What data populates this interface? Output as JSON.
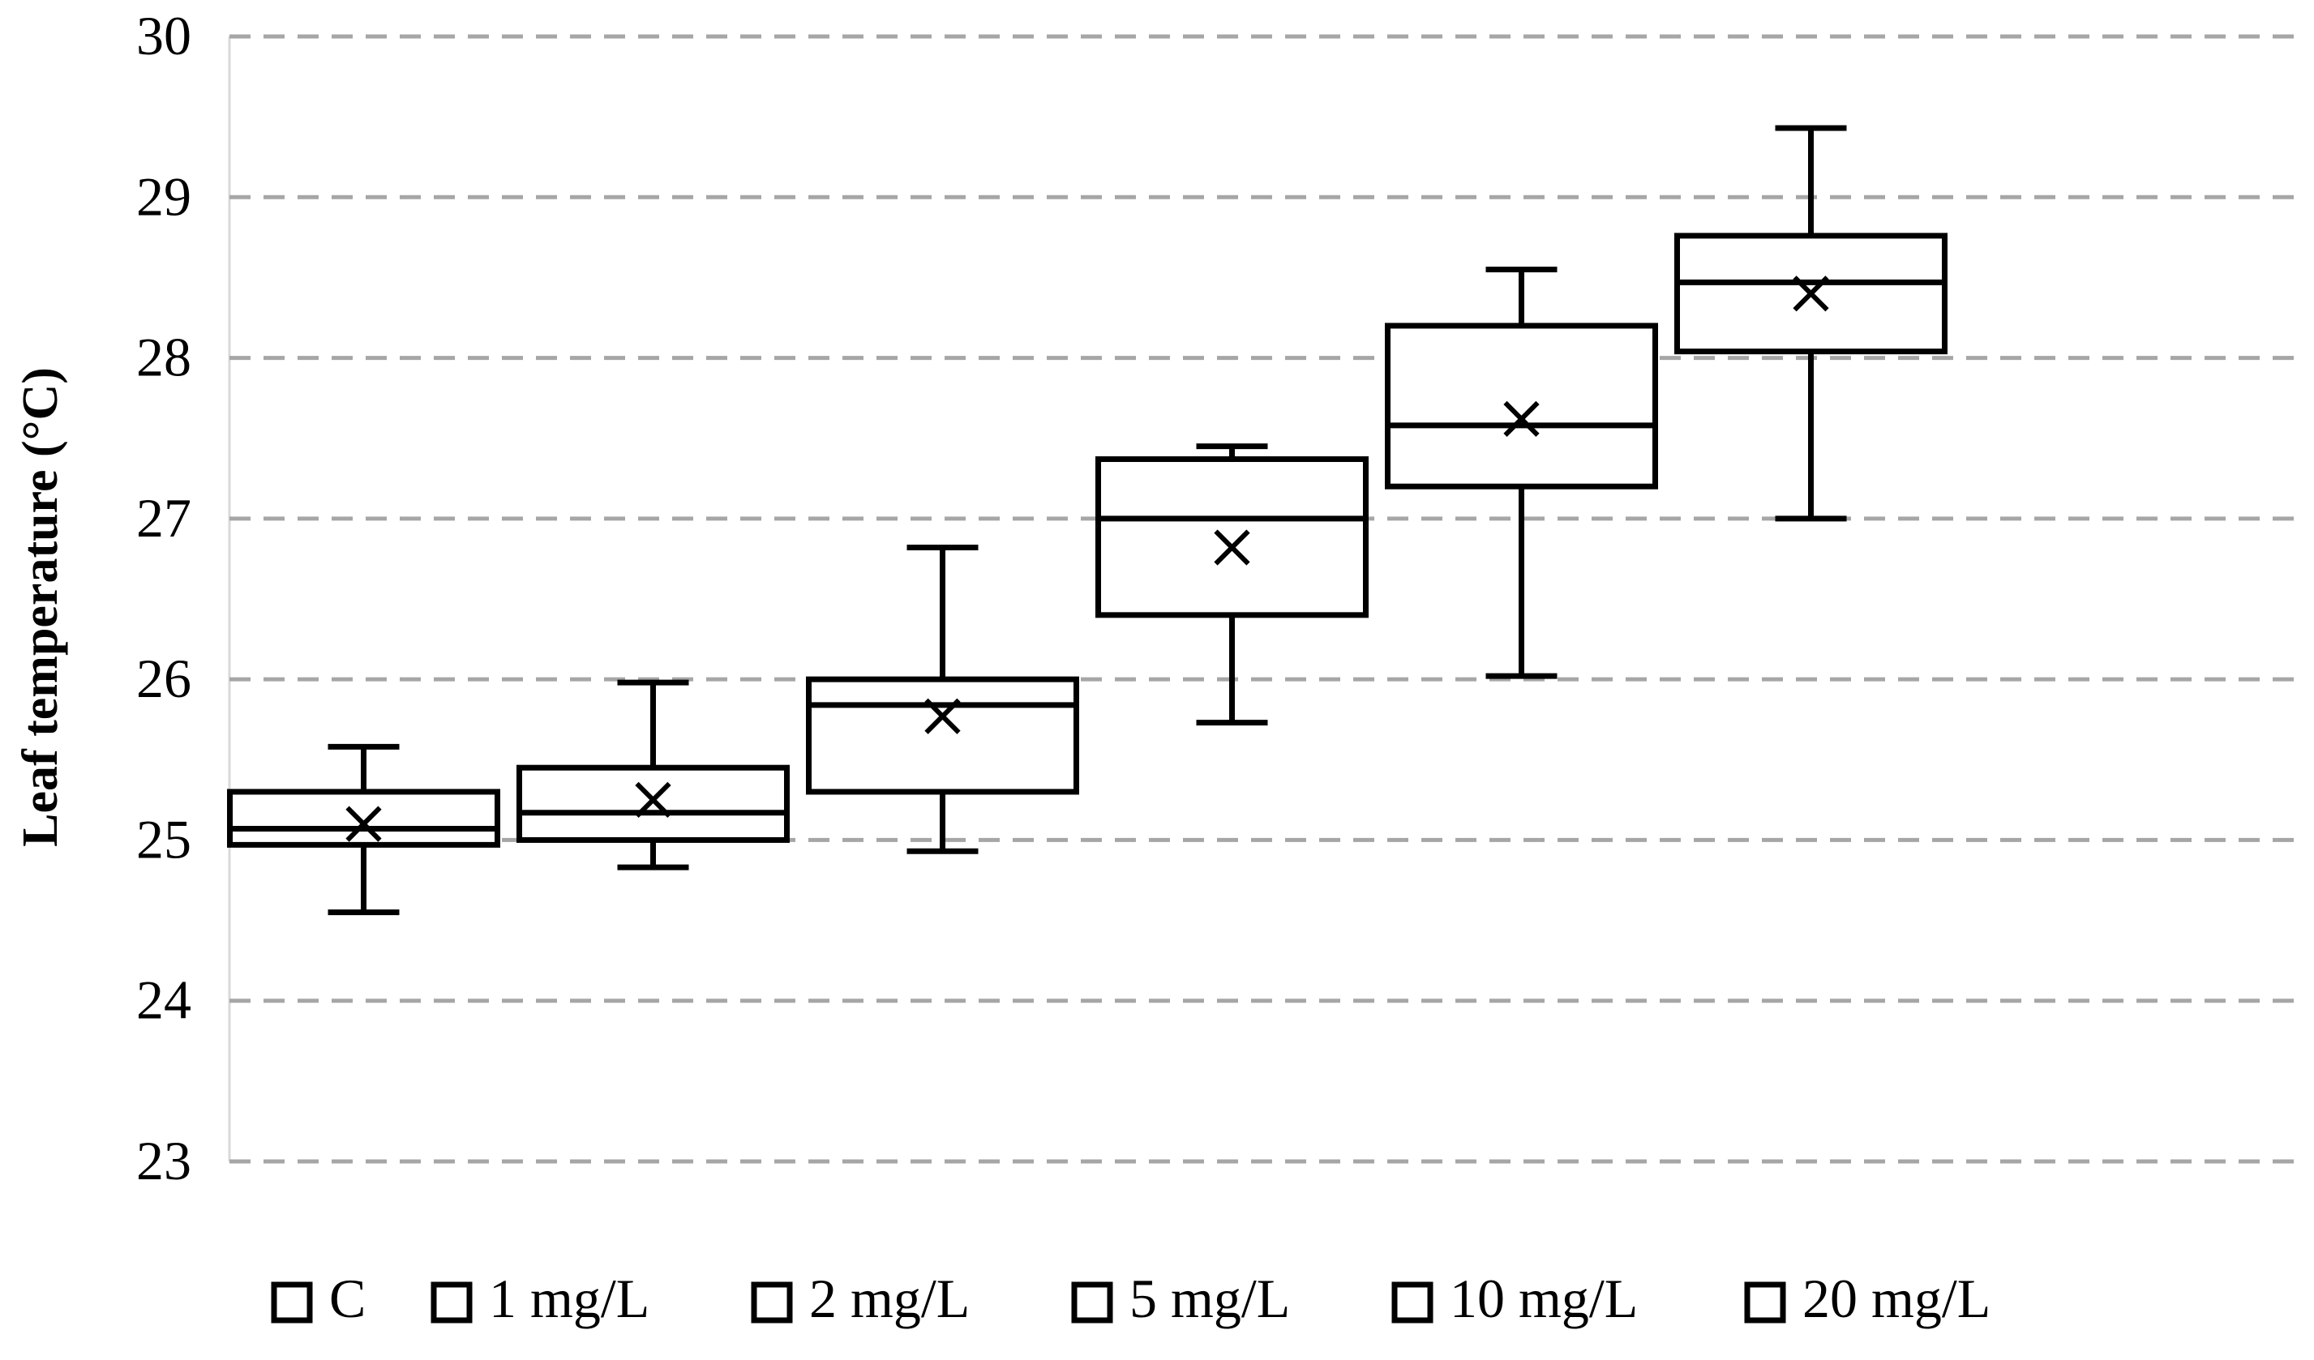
{
  "chart_data": {
    "type": "box",
    "ylabel": "Leaf temperature (°C)",
    "xlabel": "",
    "ylim": [
      23,
      30
    ],
    "yticks": [
      23,
      24,
      25,
      26,
      27,
      28,
      29,
      30
    ],
    "grid": true,
    "legend_position": "bottom",
    "colors": {
      "stroke": "#000000",
      "fill": "#ffffff",
      "grid": "#a6a6a6"
    },
    "categories": [
      "C",
      "1 mg/L",
      "2 mg/L",
      "5 mg/L",
      "10 mg/L",
      "20 mg/L"
    ],
    "series": [
      {
        "name": "C",
        "min": 24.55,
        "q1": 24.97,
        "median": 25.07,
        "q3": 25.3,
        "max": 25.58,
        "mean": 25.1
      },
      {
        "name": "1 mg/L",
        "min": 24.83,
        "q1": 25.0,
        "median": 25.17,
        "q3": 25.45,
        "max": 25.98,
        "mean": 25.25
      },
      {
        "name": "2 mg/L",
        "min": 24.93,
        "q1": 25.3,
        "median": 25.84,
        "q3": 26.0,
        "max": 26.82,
        "mean": 25.77
      },
      {
        "name": "5 mg/L",
        "min": 25.73,
        "q1": 26.4,
        "median": 27.0,
        "q3": 27.37,
        "max": 27.45,
        "mean": 26.82
      },
      {
        "name": "10 mg/L",
        "min": 26.02,
        "q1": 27.2,
        "median": 27.58,
        "q3": 28.2,
        "max": 28.55,
        "mean": 27.62
      },
      {
        "name": "20 mg/L",
        "min": 27.0,
        "q1": 28.04,
        "median": 28.47,
        "q3": 28.76,
        "max": 29.43,
        "mean": 28.4
      }
    ]
  }
}
